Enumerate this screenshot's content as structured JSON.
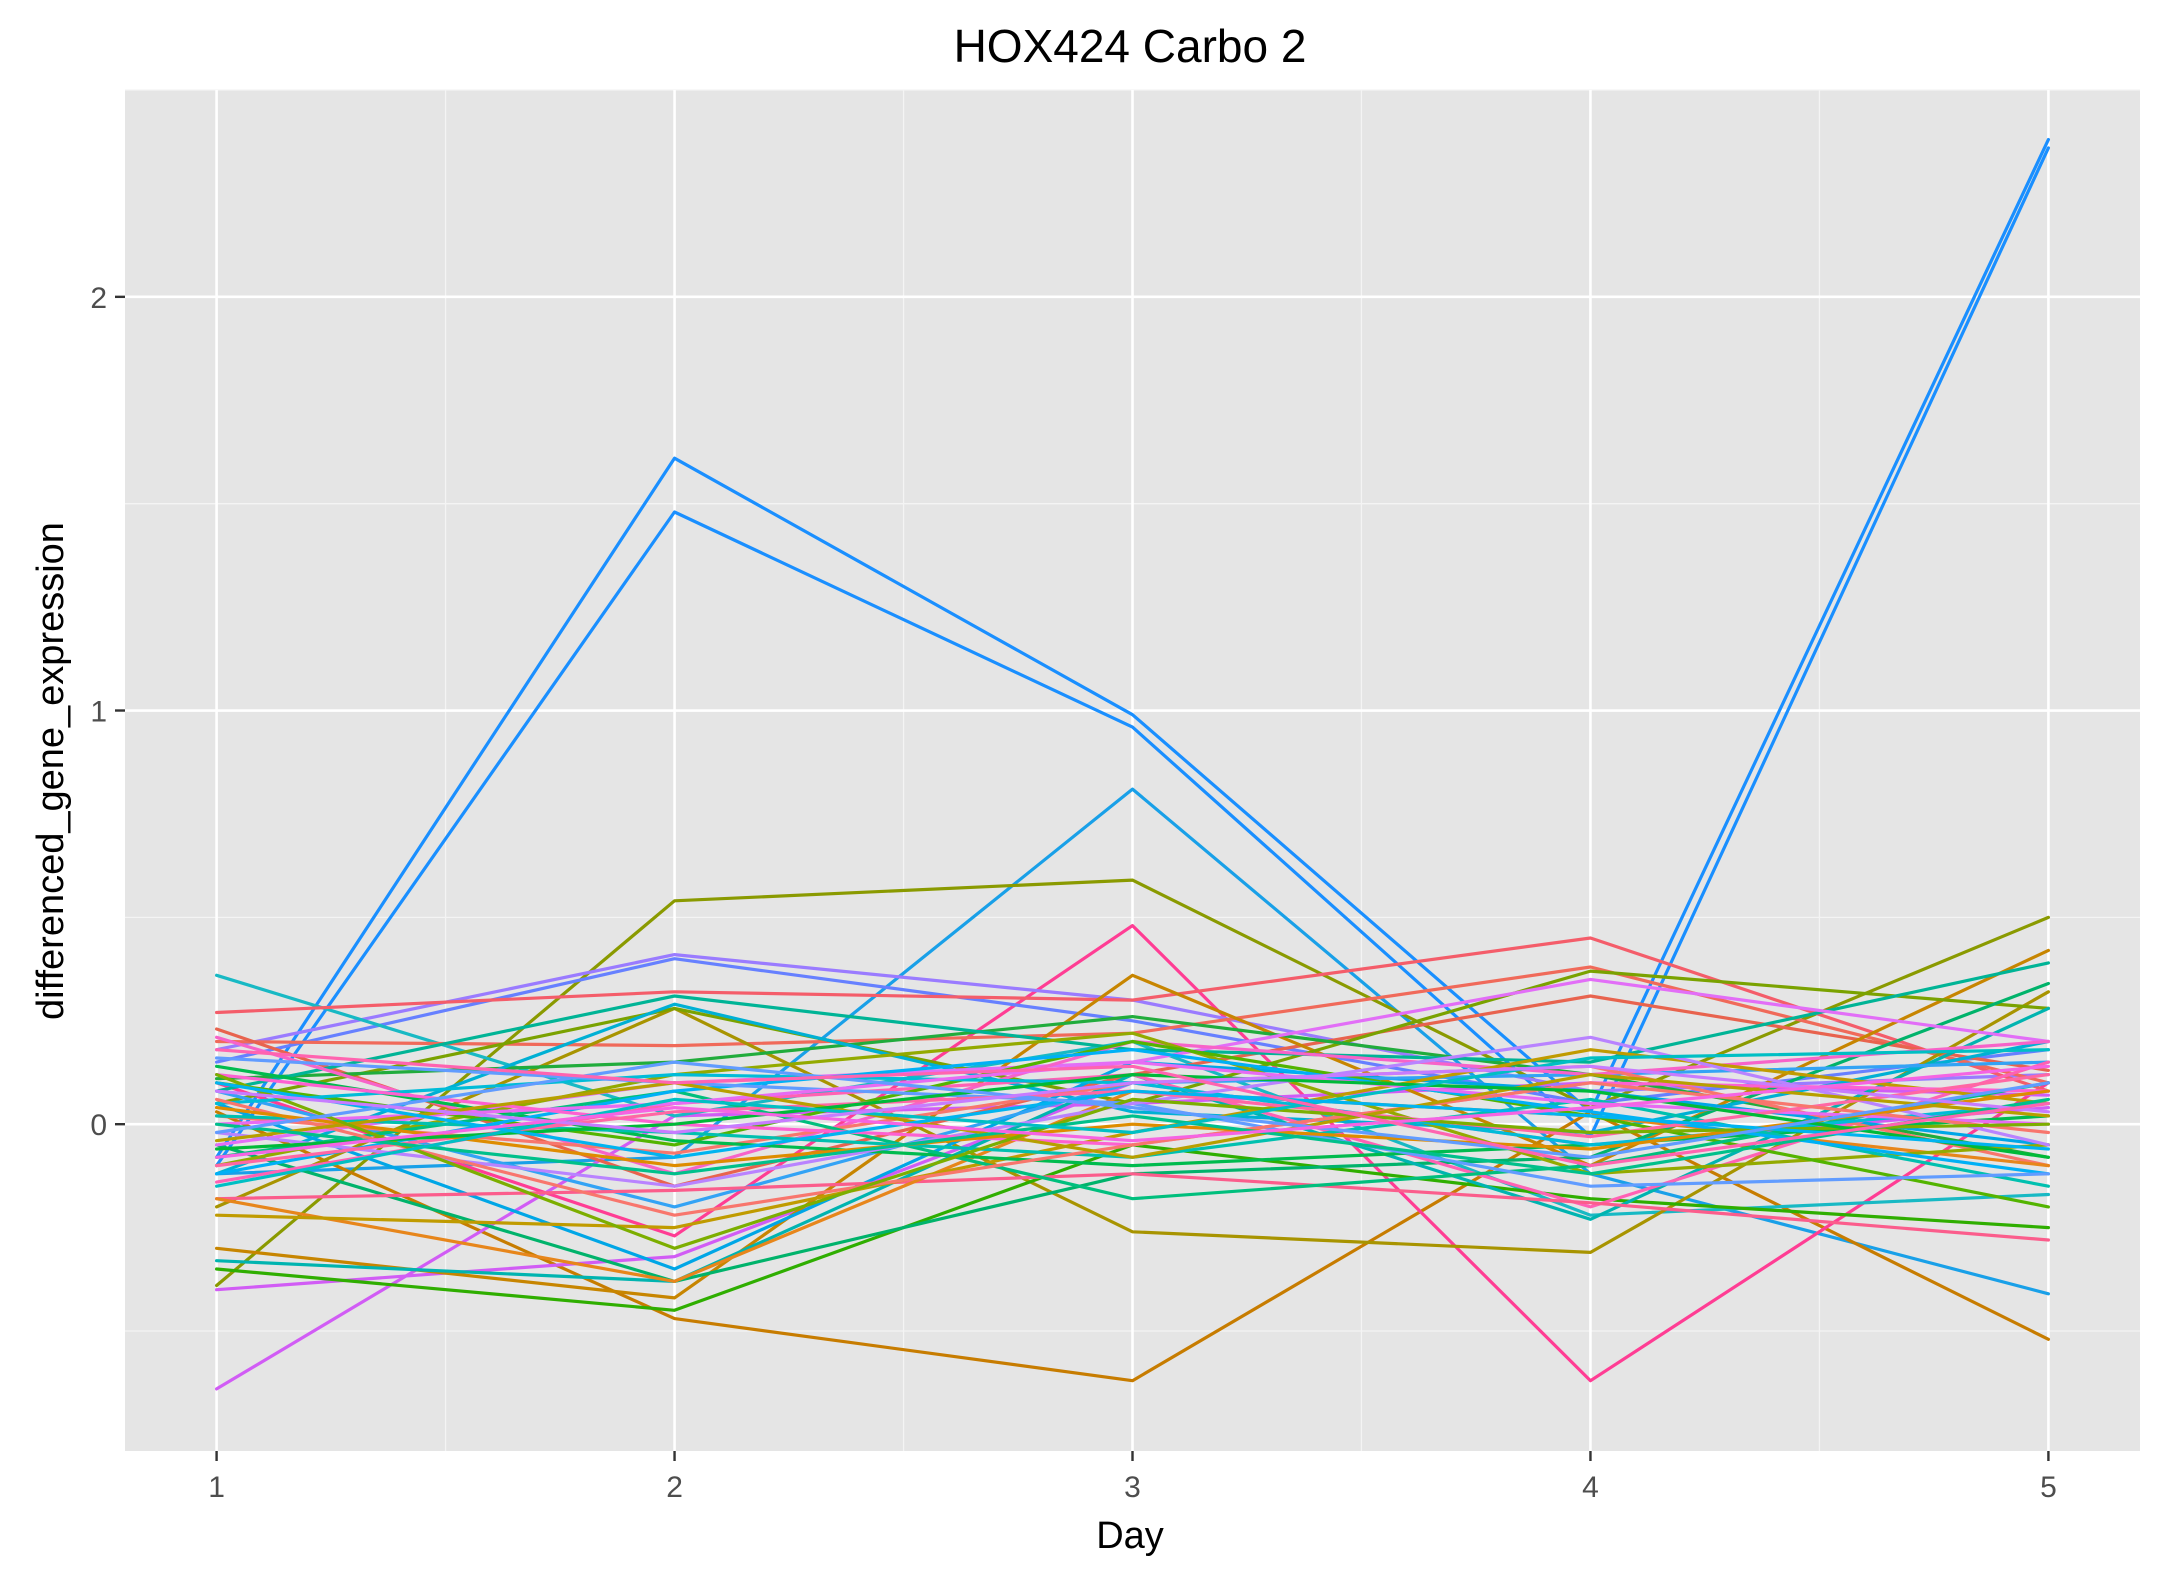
{
  "chart_data": {
    "type": "line",
    "title": "HOX424 Carbo 2",
    "xlabel": "Day",
    "ylabel": "differenced_gene_expression",
    "x": [
      1,
      2,
      3,
      4,
      5
    ],
    "x_tick_labels": [
      "1",
      "2",
      "3",
      "4",
      "5"
    ],
    "y_ticks": [
      0,
      1,
      2
    ],
    "y_tick_labels": [
      "0",
      "1",
      "2"
    ],
    "xlim": [
      0.8,
      5.2
    ],
    "ylim": [
      -0.79,
      2.5
    ],
    "grid": true,
    "legend": "none",
    "series": [
      {
        "color": "#1a8fff",
        "values": [
          -0.08,
          1.61,
          0.99,
          0.03,
          2.38
        ]
      },
      {
        "color": "#1a8fff",
        "values": [
          -0.1,
          1.48,
          0.96,
          -0.03,
          2.36
        ]
      },
      {
        "color": "#19a0e8",
        "values": [
          -0.12,
          -0.08,
          0.81,
          -0.12,
          -0.41
        ]
      },
      {
        "color": "#8a9a00",
        "values": [
          -0.39,
          0.54,
          0.59,
          0.04,
          0.5
        ]
      },
      {
        "color": "#c77c00",
        "values": [
          0.03,
          -0.47,
          -0.62,
          0.03,
          -0.52
        ]
      },
      {
        "color": "#ff3d94",
        "values": [
          0.1,
          -0.27,
          0.48,
          -0.62,
          0.1
        ]
      },
      {
        "color": "#d15cf5",
        "values": [
          -0.64,
          0.02,
          0.05,
          0.1,
          0.07
        ]
      },
      {
        "color": "#d15cf5",
        "values": [
          -0.4,
          -0.32,
          0.1,
          -0.05,
          0.04
        ]
      },
      {
        "color": "#9a7bff",
        "values": [
          0.18,
          0.41,
          0.3,
          0.08,
          0.12
        ]
      },
      {
        "color": "#6680ff",
        "values": [
          0.15,
          0.4,
          0.25,
          0.05,
          0.18
        ]
      },
      {
        "color": "#18b9c4",
        "values": [
          0.36,
          0.02,
          0.2,
          -0.22,
          -0.17
        ]
      },
      {
        "color": "#f45d6a",
        "values": [
          0.27,
          0.32,
          0.3,
          0.45,
          0.08
        ]
      },
      {
        "color": "#f06a5a",
        "values": [
          0.2,
          0.19,
          0.22,
          0.38,
          0.1
        ]
      },
      {
        "color": "#e8634e",
        "values": [
          0.23,
          -0.15,
          0.12,
          0.31,
          0.13
        ]
      },
      {
        "color": "#c78500",
        "values": [
          -0.3,
          -0.42,
          0.36,
          -0.1,
          0.42
        ]
      },
      {
        "color": "#a89400",
        "values": [
          -0.2,
          0.28,
          -0.26,
          -0.31,
          0.32
        ]
      },
      {
        "color": "#7aa200",
        "values": [
          0.05,
          0.28,
          0.05,
          0.37,
          0.28
        ]
      },
      {
        "color": "#2fae00",
        "values": [
          -0.35,
          -0.45,
          -0.05,
          -0.18,
          -0.25
        ]
      },
      {
        "color": "#21ac3c",
        "values": [
          0.11,
          0.15,
          0.26,
          0.12,
          -0.08
        ]
      },
      {
        "color": "#00b36b",
        "values": [
          -0.05,
          -0.38,
          -0.12,
          -0.08,
          0.34
        ]
      },
      {
        "color": "#00b496",
        "values": [
          0.08,
          0.31,
          0.18,
          0.15,
          0.39
        ]
      },
      {
        "color": "#00b4b0",
        "values": [
          -0.33,
          -0.38,
          0.12,
          -0.23,
          0.28
        ]
      },
      {
        "color": "#00b0d4",
        "values": [
          -0.12,
          0.29,
          0.03,
          -0.02,
          0.2
        ]
      },
      {
        "color": "#00a6e6",
        "values": [
          0.05,
          -0.35,
          0.15,
          0.08,
          -0.05
        ]
      },
      {
        "color": "#33a3f5",
        "values": [
          0.08,
          -0.2,
          0.1,
          0.12,
          0.15
        ]
      },
      {
        "color": "#e26ef7",
        "values": [
          -0.05,
          0.1,
          0.15,
          0.35,
          0.2
        ]
      },
      {
        "color": "#f763c9",
        "values": [
          0.21,
          -0.12,
          0.2,
          0.12,
          0.2
        ]
      },
      {
        "color": "#ff61b4",
        "values": [
          -0.14,
          0.05,
          0.12,
          -0.2,
          0.15
        ]
      },
      {
        "color": "#fb5d8c",
        "values": [
          -0.18,
          -0.16,
          -0.12,
          -0.19,
          -0.28
        ]
      },
      {
        "color": "#f8766d",
        "values": [
          0.02,
          -0.07,
          0.1,
          0.14,
          -0.1
        ]
      },
      {
        "color": "#e7861b",
        "values": [
          -0.18,
          -0.38,
          0.08,
          0.02,
          -0.1
        ]
      },
      {
        "color": "#c09b00",
        "values": [
          -0.22,
          -0.25,
          -0.02,
          0.18,
          0.05
        ]
      },
      {
        "color": "#93aa00",
        "values": [
          -0.1,
          0.12,
          0.22,
          -0.12,
          -0.05
        ]
      },
      {
        "color": "#53b400",
        "values": [
          0.1,
          -0.05,
          0.2,
          0.02,
          -0.2
        ]
      },
      {
        "color": "#00bb4e",
        "values": [
          0.14,
          -0.04,
          -0.1,
          -0.05,
          0.02
        ]
      },
      {
        "color": "#00bf7d",
        "values": [
          -0.08,
          0.08,
          -0.18,
          -0.1,
          0.1
        ]
      },
      {
        "color": "#00c0af",
        "values": [
          0.02,
          -0.02,
          -0.08,
          0.06,
          -0.15
        ]
      },
      {
        "color": "#00bcd8",
        "values": [
          0.05,
          0.12,
          0.1,
          -0.05,
          0.05
        ]
      },
      {
        "color": "#00b0f6",
        "values": [
          -0.12,
          0.08,
          0.18,
          0.03,
          -0.12
        ]
      },
      {
        "color": "#619cff",
        "values": [
          0.16,
          0.1,
          0.05,
          -0.15,
          -0.12
        ]
      },
      {
        "color": "#b983ff",
        "values": [
          -0.02,
          -0.15,
          0.05,
          0.21,
          -0.05
        ]
      },
      {
        "color": "#e76bf3",
        "values": [
          0.0,
          0.05,
          0.15,
          0.05,
          0.0
        ]
      },
      {
        "color": "#fd61d1",
        "values": [
          0.12,
          0.0,
          -0.05,
          0.1,
          0.08
        ]
      },
      {
        "color": "#ff67a4",
        "values": [
          -0.1,
          0.03,
          0.08,
          -0.03,
          0.12
        ]
      },
      {
        "color": "#f8766d",
        "values": [
          0.06,
          -0.22,
          -0.05,
          0.1,
          -0.02
        ]
      },
      {
        "color": "#de8c00",
        "values": [
          0.04,
          -0.1,
          0.0,
          -0.06,
          0.08
        ]
      },
      {
        "color": "#b79f00",
        "values": [
          -0.04,
          0.1,
          -0.08,
          0.12,
          0.02
        ]
      },
      {
        "color": "#7cae00",
        "values": [
          0.12,
          -0.3,
          0.06,
          -0.02,
          0.0
        ]
      },
      {
        "color": "#00ba38",
        "values": [
          -0.06,
          0.0,
          0.12,
          0.08,
          -0.08
        ]
      },
      {
        "color": "#00c08b",
        "values": [
          0.0,
          -0.12,
          0.02,
          -0.12,
          0.06
        ]
      },
      {
        "color": "#00bfc4",
        "values": [
          -0.15,
          0.06,
          -0.02,
          0.16,
          0.18
        ]
      },
      {
        "color": "#00b4f0",
        "values": [
          0.1,
          -0.08,
          0.08,
          0.02,
          -0.06
        ]
      },
      {
        "color": "#619cff",
        "values": [
          -0.02,
          0.15,
          0.04,
          -0.08,
          0.1
        ]
      },
      {
        "color": "#c77cff",
        "values": [
          0.08,
          -0.02,
          0.1,
          0.14,
          0.03
        ]
      },
      {
        "color": "#f564e3",
        "values": [
          -0.08,
          0.04,
          -0.04,
          0.04,
          0.14
        ]
      },
      {
        "color": "#ff64b0",
        "values": [
          0.18,
          0.1,
          0.14,
          -0.1,
          0.05
        ]
      }
    ]
  }
}
